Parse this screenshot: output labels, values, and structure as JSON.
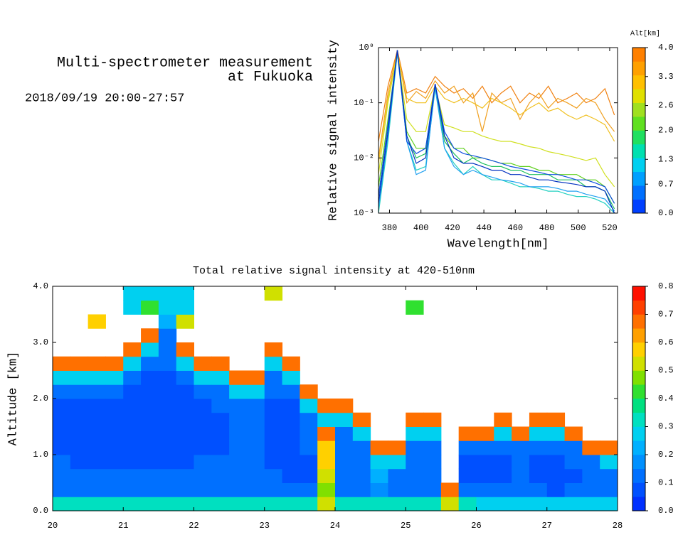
{
  "header": {
    "title_line1": "Multi-spectrometer measurement",
    "title_line2": "at Fukuoka",
    "date": "2018/09/19 20:00-27:57"
  },
  "chart_data": [
    {
      "type": "line",
      "xlabel": "Wavelength[nm]",
      "ylabel": "Relative signal intensity",
      "log_scale": true,
      "xlim": [
        373,
        525
      ],
      "xticks": [
        380,
        400,
        420,
        440,
        460,
        480,
        500,
        520
      ],
      "ylim": [
        0.001,
        1
      ],
      "yticks": [
        {
          "value": 0.001,
          "label": "10⁻³"
        },
        {
          "value": 0.01,
          "label": "10⁻²"
        },
        {
          "value": 0.1,
          "label": "10⁻¹"
        },
        {
          "value": 1,
          "label": "10⁰"
        }
      ],
      "x": [
        373,
        379,
        385,
        391,
        397,
        403,
        409,
        415,
        421,
        427,
        433,
        439,
        445,
        451,
        457,
        463,
        469,
        475,
        481,
        487,
        493,
        499,
        505,
        511,
        517,
        523
      ],
      "series": [
        {
          "color": "#f08010",
          "values": [
            0.02,
            0.2,
            0.9,
            0.15,
            0.18,
            0.15,
            0.3,
            0.2,
            0.15,
            0.18,
            0.12,
            0.2,
            0.1,
            0.15,
            0.2,
            0.1,
            0.15,
            0.12,
            0.2,
            0.1,
            0.12,
            0.15,
            0.1,
            0.12,
            0.18,
            0.06
          ]
        },
        {
          "color": "#f0a020",
          "values": [
            0.01,
            0.15,
            0.85,
            0.1,
            0.16,
            0.12,
            0.25,
            0.15,
            0.2,
            0.1,
            0.15,
            0.03,
            0.15,
            0.1,
            0.12,
            0.05,
            0.1,
            0.15,
            0.08,
            0.12,
            0.1,
            0.08,
            0.12,
            0.1,
            0.05,
            0.03
          ]
        },
        {
          "color": "#f0c020",
          "values": [
            0.008,
            0.12,
            0.8,
            0.12,
            0.1,
            0.1,
            0.2,
            0.12,
            0.1,
            0.12,
            0.1,
            0.08,
            0.12,
            0.1,
            0.08,
            0.06,
            0.08,
            0.1,
            0.07,
            0.08,
            0.06,
            0.05,
            0.06,
            0.05,
            0.04,
            0.02
          ]
        },
        {
          "color": "#d0e020",
          "values": [
            0.005,
            0.1,
            0.8,
            0.05,
            0.03,
            0.03,
            0.2,
            0.04,
            0.035,
            0.03,
            0.03,
            0.025,
            0.022,
            0.02,
            0.02,
            0.018,
            0.016,
            0.015,
            0.013,
            0.012,
            0.011,
            0.01,
            0.009,
            0.01,
            0.005,
            0.003
          ]
        },
        {
          "color": "#60d020",
          "values": [
            0.003,
            0.05,
            0.8,
            0.03,
            0.015,
            0.015,
            0.2,
            0.025,
            0.015,
            0.015,
            0.01,
            0.01,
            0.009,
            0.008,
            0.008,
            0.007,
            0.007,
            0.006,
            0.006,
            0.005,
            0.005,
            0.005,
            0.004,
            0.004,
            0.003,
            0.0015
          ]
        },
        {
          "color": "#20c060",
          "values": [
            0.002,
            0.04,
            0.85,
            0.025,
            0.01,
            0.012,
            0.2,
            0.02,
            0.012,
            0.008,
            0.01,
            0.008,
            0.007,
            0.007,
            0.006,
            0.006,
            0.005,
            0.005,
            0.005,
            0.004,
            0.004,
            0.004,
            0.003,
            0.003,
            0.0025,
            0.0012
          ]
        },
        {
          "color": "#20d0c0",
          "values": [
            0.001,
            0.02,
            0.8,
            0.02,
            0.006,
            0.007,
            0.18,
            0.015,
            0.008,
            0.005,
            0.007,
            0.005,
            0.004,
            0.004,
            0.0035,
            0.003,
            0.003,
            0.0028,
            0.0025,
            0.0025,
            0.0022,
            0.002,
            0.002,
            0.0018,
            0.0015,
            0.001
          ]
        },
        {
          "color": "#20a0f0",
          "values": [
            0.0012,
            0.025,
            0.85,
            0.02,
            0.005,
            0.006,
            0.2,
            0.015,
            0.007,
            0.005,
            0.006,
            0.005,
            0.0045,
            0.004,
            0.0038,
            0.0035,
            0.003,
            0.003,
            0.003,
            0.0028,
            0.0025,
            0.0025,
            0.0022,
            0.002,
            0.0018,
            0.0011
          ]
        },
        {
          "color": "#1050e0",
          "values": [
            0.002,
            0.04,
            0.9,
            0.02,
            0.012,
            0.015,
            0.22,
            0.03,
            0.015,
            0.012,
            0.011,
            0.01,
            0.009,
            0.008,
            0.007,
            0.0065,
            0.006,
            0.0055,
            0.005,
            0.005,
            0.0045,
            0.004,
            0.004,
            0.0035,
            0.003,
            0.0015
          ]
        },
        {
          "color": "#0030c0",
          "values": [
            0.0015,
            0.03,
            0.9,
            0.025,
            0.008,
            0.01,
            0.22,
            0.025,
            0.01,
            0.008,
            0.008,
            0.007,
            0.006,
            0.006,
            0.005,
            0.005,
            0.0045,
            0.004,
            0.004,
            0.0037,
            0.0035,
            0.0033,
            0.003,
            0.003,
            0.0025,
            0.001
          ]
        }
      ],
      "colorbar": {
        "title": "Alt[km]",
        "lim": [
          0,
          4
        ],
        "ticks": [
          {
            "value": 0,
            "label": "0.0"
          },
          0.7,
          1.3,
          {
            "value": 2,
            "label": "2.0"
          },
          2.6,
          3.3,
          {
            "value": 4,
            "label": "4.0"
          }
        ],
        "colors": [
          "#0040ff",
          "#0070ff",
          "#00a0ff",
          "#00d0f0",
          "#00e0b0",
          "#20e060",
          "#60e020",
          "#a0e020",
          "#e0e000",
          "#ffc000",
          "#ffa000",
          "#ff8000"
        ]
      }
    },
    {
      "type": "heatmap",
      "title": "Total relative signal intensity at 420-510nm",
      "ylabel": "Altitude [km]",
      "xlim": [
        20,
        28
      ],
      "xticks": [
        20,
        21,
        22,
        23,
        24,
        25,
        26,
        27,
        28
      ],
      "ylim": [
        0,
        4
      ],
      "yticks": [
        {
          "value": 0,
          "label": "0.0"
        },
        {
          "value": 1,
          "label": "1.0"
        },
        {
          "value": 2,
          "label": "2.0"
        },
        {
          "value": 3,
          "label": "3.0"
        },
        {
          "value": 4,
          "label": "4.0"
        }
      ],
      "x": [
        20,
        20.25,
        20.5,
        20.75,
        21,
        21.25,
        21.5,
        21.75,
        22,
        22.25,
        22.5,
        22.75,
        23,
        23.25,
        23.5,
        23.75,
        24,
        24.25,
        24.5,
        24.75,
        25,
        25.25,
        25.5,
        25.75,
        26,
        26.25,
        26.5,
        26.75,
        27,
        27.25,
        27.5,
        27.75
      ],
      "y": [
        0,
        0.25,
        0.5,
        0.75,
        1,
        1.25,
        1.5,
        1.75,
        2,
        2.25,
        2.5,
        2.75,
        3,
        3.25,
        3.5,
        3.75
      ],
      "z": [
        [
          0.35,
          0.12,
          0.1,
          0.1,
          0.09,
          0.08,
          0.08,
          0.09,
          0.1,
          0.25,
          0.7,
          null,
          null,
          null,
          null,
          null
        ],
        [
          0.35,
          0.13,
          0.11,
          0.09,
          0.08,
          0.08,
          0.08,
          0.09,
          0.11,
          0.25,
          0.7,
          null,
          null,
          null,
          null,
          null
        ],
        [
          0.35,
          0.12,
          0.1,
          0.08,
          0.07,
          0.07,
          0.08,
          0.08,
          0.1,
          0.25,
          0.7,
          null,
          null,
          0.6,
          null,
          null
        ],
        [
          0.35,
          0.12,
          0.1,
          0.09,
          0.08,
          0.07,
          0.07,
          0.08,
          0.1,
          0.25,
          0.7,
          null,
          null,
          null,
          null,
          null
        ],
        [
          0.35,
          0.12,
          0.1,
          0.09,
          0.08,
          0.07,
          0.07,
          0.07,
          0.08,
          0.1,
          0.25,
          0.7,
          null,
          null,
          0.3,
          0.25
        ],
        [
          0.35,
          0.12,
          0.1,
          0.09,
          0.08,
          0.07,
          0.07,
          0.07,
          0.08,
          0.09,
          0.12,
          0.25,
          0.7,
          null,
          0.4,
          0.3
        ],
        [
          0.35,
          0.12,
          0.1,
          0.09,
          0.08,
          0.07,
          0.07,
          0.07,
          0.08,
          0.09,
          0.1,
          0.12,
          0.15,
          0.2,
          0.25,
          0.3
        ],
        [
          0.35,
          0.12,
          0.1,
          0.09,
          0.08,
          0.08,
          0.08,
          0.08,
          0.09,
          0.12,
          0.25,
          0.7,
          null,
          0.5,
          0.3,
          0.3
        ],
        [
          0.35,
          0.13,
          0.11,
          0.1,
          0.09,
          0.08,
          0.08,
          0.09,
          0.1,
          0.25,
          0.7,
          null,
          null,
          null,
          null,
          null
        ],
        [
          0.35,
          0.13,
          0.11,
          0.1,
          0.09,
          0.09,
          0.09,
          0.1,
          0.11,
          0.25,
          0.7,
          null,
          null,
          null,
          null,
          null
        ],
        [
          0.35,
          0.13,
          0.11,
          0.1,
          0.1,
          0.1,
          0.1,
          0.12,
          0.25,
          0.7,
          null,
          null,
          null,
          null,
          null,
          null
        ],
        [
          0.35,
          0.14,
          0.12,
          0.1,
          0.1,
          0.1,
          0.11,
          0.12,
          0.25,
          0.7,
          null,
          null,
          null,
          null,
          null,
          null
        ],
        [
          0.35,
          0.12,
          0.1,
          0.08,
          0.07,
          0.07,
          0.08,
          0.09,
          0.1,
          0.15,
          0.25,
          0.7,
          null,
          null,
          null,
          0.5
        ],
        [
          0.35,
          0.12,
          0.09,
          0.08,
          0.07,
          0.07,
          0.08,
          0.09,
          0.12,
          0.25,
          0.7,
          null,
          null,
          null,
          null,
          null
        ],
        [
          0.35,
          0.1,
          0.09,
          0.09,
          0.1,
          0.1,
          0.12,
          0.25,
          0.7,
          null,
          null,
          null,
          null,
          null,
          null,
          null
        ],
        [
          0.5,
          0.45,
          0.5,
          0.55,
          0.6,
          0.65,
          0.3,
          0.7,
          null,
          null,
          null,
          null,
          null,
          null,
          null,
          null
        ],
        [
          0.35,
          0.15,
          0.14,
          0.12,
          0.12,
          0.13,
          0.25,
          0.7,
          null,
          null,
          null,
          null,
          null,
          null,
          null,
          null
        ],
        [
          0.35,
          0.15,
          0.13,
          0.12,
          0.13,
          0.25,
          0.7,
          null,
          null,
          null,
          null,
          null,
          null,
          null,
          null,
          null
        ],
        [
          0.35,
          0.18,
          0.2,
          0.3,
          0.7,
          null,
          null,
          null,
          null,
          null,
          null,
          null,
          null,
          null,
          null,
          null
        ],
        [
          0.35,
          0.14,
          0.12,
          0.25,
          0.7,
          null,
          null,
          null,
          null,
          null,
          null,
          null,
          null,
          null,
          null,
          null
        ],
        [
          0.35,
          0.14,
          0.12,
          0.11,
          0.12,
          0.25,
          0.7,
          null,
          null,
          null,
          null,
          null,
          null,
          null,
          0.4,
          null
        ],
        [
          0.35,
          0.15,
          0.12,
          0.12,
          0.14,
          0.25,
          0.7,
          null,
          null,
          null,
          null,
          null,
          null,
          null,
          null,
          null
        ],
        [
          0.5,
          0.7,
          null,
          null,
          null,
          null,
          null,
          null,
          null,
          null,
          null,
          null,
          null,
          null,
          null,
          null
        ],
        [
          0.35,
          0.12,
          0.09,
          0.08,
          0.1,
          0.7,
          null,
          null,
          null,
          null,
          null,
          null,
          null,
          null,
          null,
          null
        ],
        [
          0.3,
          0.1,
          0.08,
          0.08,
          0.1,
          0.7,
          null,
          null,
          null,
          null,
          null,
          null,
          null,
          null,
          null,
          null
        ],
        [
          0.3,
          0.1,
          0.09,
          0.09,
          0.1,
          0.25,
          0.7,
          null,
          null,
          null,
          null,
          null,
          null,
          null,
          null,
          null
        ],
        [
          0.3,
          0.11,
          0.1,
          0.1,
          0.12,
          0.7,
          null,
          null,
          null,
          null,
          null,
          null,
          null,
          null,
          null,
          null
        ],
        [
          0.3,
          0.1,
          0.09,
          0.09,
          0.11,
          0.25,
          0.7,
          null,
          null,
          null,
          null,
          null,
          null,
          null,
          null,
          null
        ],
        [
          0.3,
          0.09,
          0.08,
          0.08,
          0.1,
          0.25,
          0.7,
          null,
          null,
          null,
          null,
          null,
          null,
          null,
          null,
          null
        ],
        [
          0.3,
          0.1,
          0.09,
          0.1,
          0.15,
          0.7,
          null,
          null,
          null,
          null,
          null,
          null,
          null,
          null,
          null,
          null
        ],
        [
          0.3,
          0.1,
          0.1,
          0.12,
          0.7,
          null,
          null,
          null,
          null,
          null,
          null,
          null,
          null,
          null,
          null,
          null
        ],
        [
          0.3,
          0.12,
          0.15,
          0.25,
          0.7,
          null,
          null,
          null,
          null,
          null,
          null,
          null,
          null,
          null,
          null,
          null
        ]
      ],
      "colorbar": {
        "lim": [
          0,
          0.8
        ],
        "ticks": [
          {
            "value": 0,
            "label": "0.0"
          },
          0.1,
          0.2,
          0.3,
          0.4,
          0.5,
          0.6,
          0.7,
          0.8
        ],
        "colors": [
          "#0030ff",
          "#0050ff",
          "#0070ff",
          "#0090ff",
          "#00b0ff",
          "#00d0f0",
          "#00e0c0",
          "#00e080",
          "#30e030",
          "#80e000",
          "#d0e000",
          "#ffd000",
          "#ffa000",
          "#ff7000",
          "#ff4000",
          "#ff1000"
        ]
      }
    }
  ]
}
